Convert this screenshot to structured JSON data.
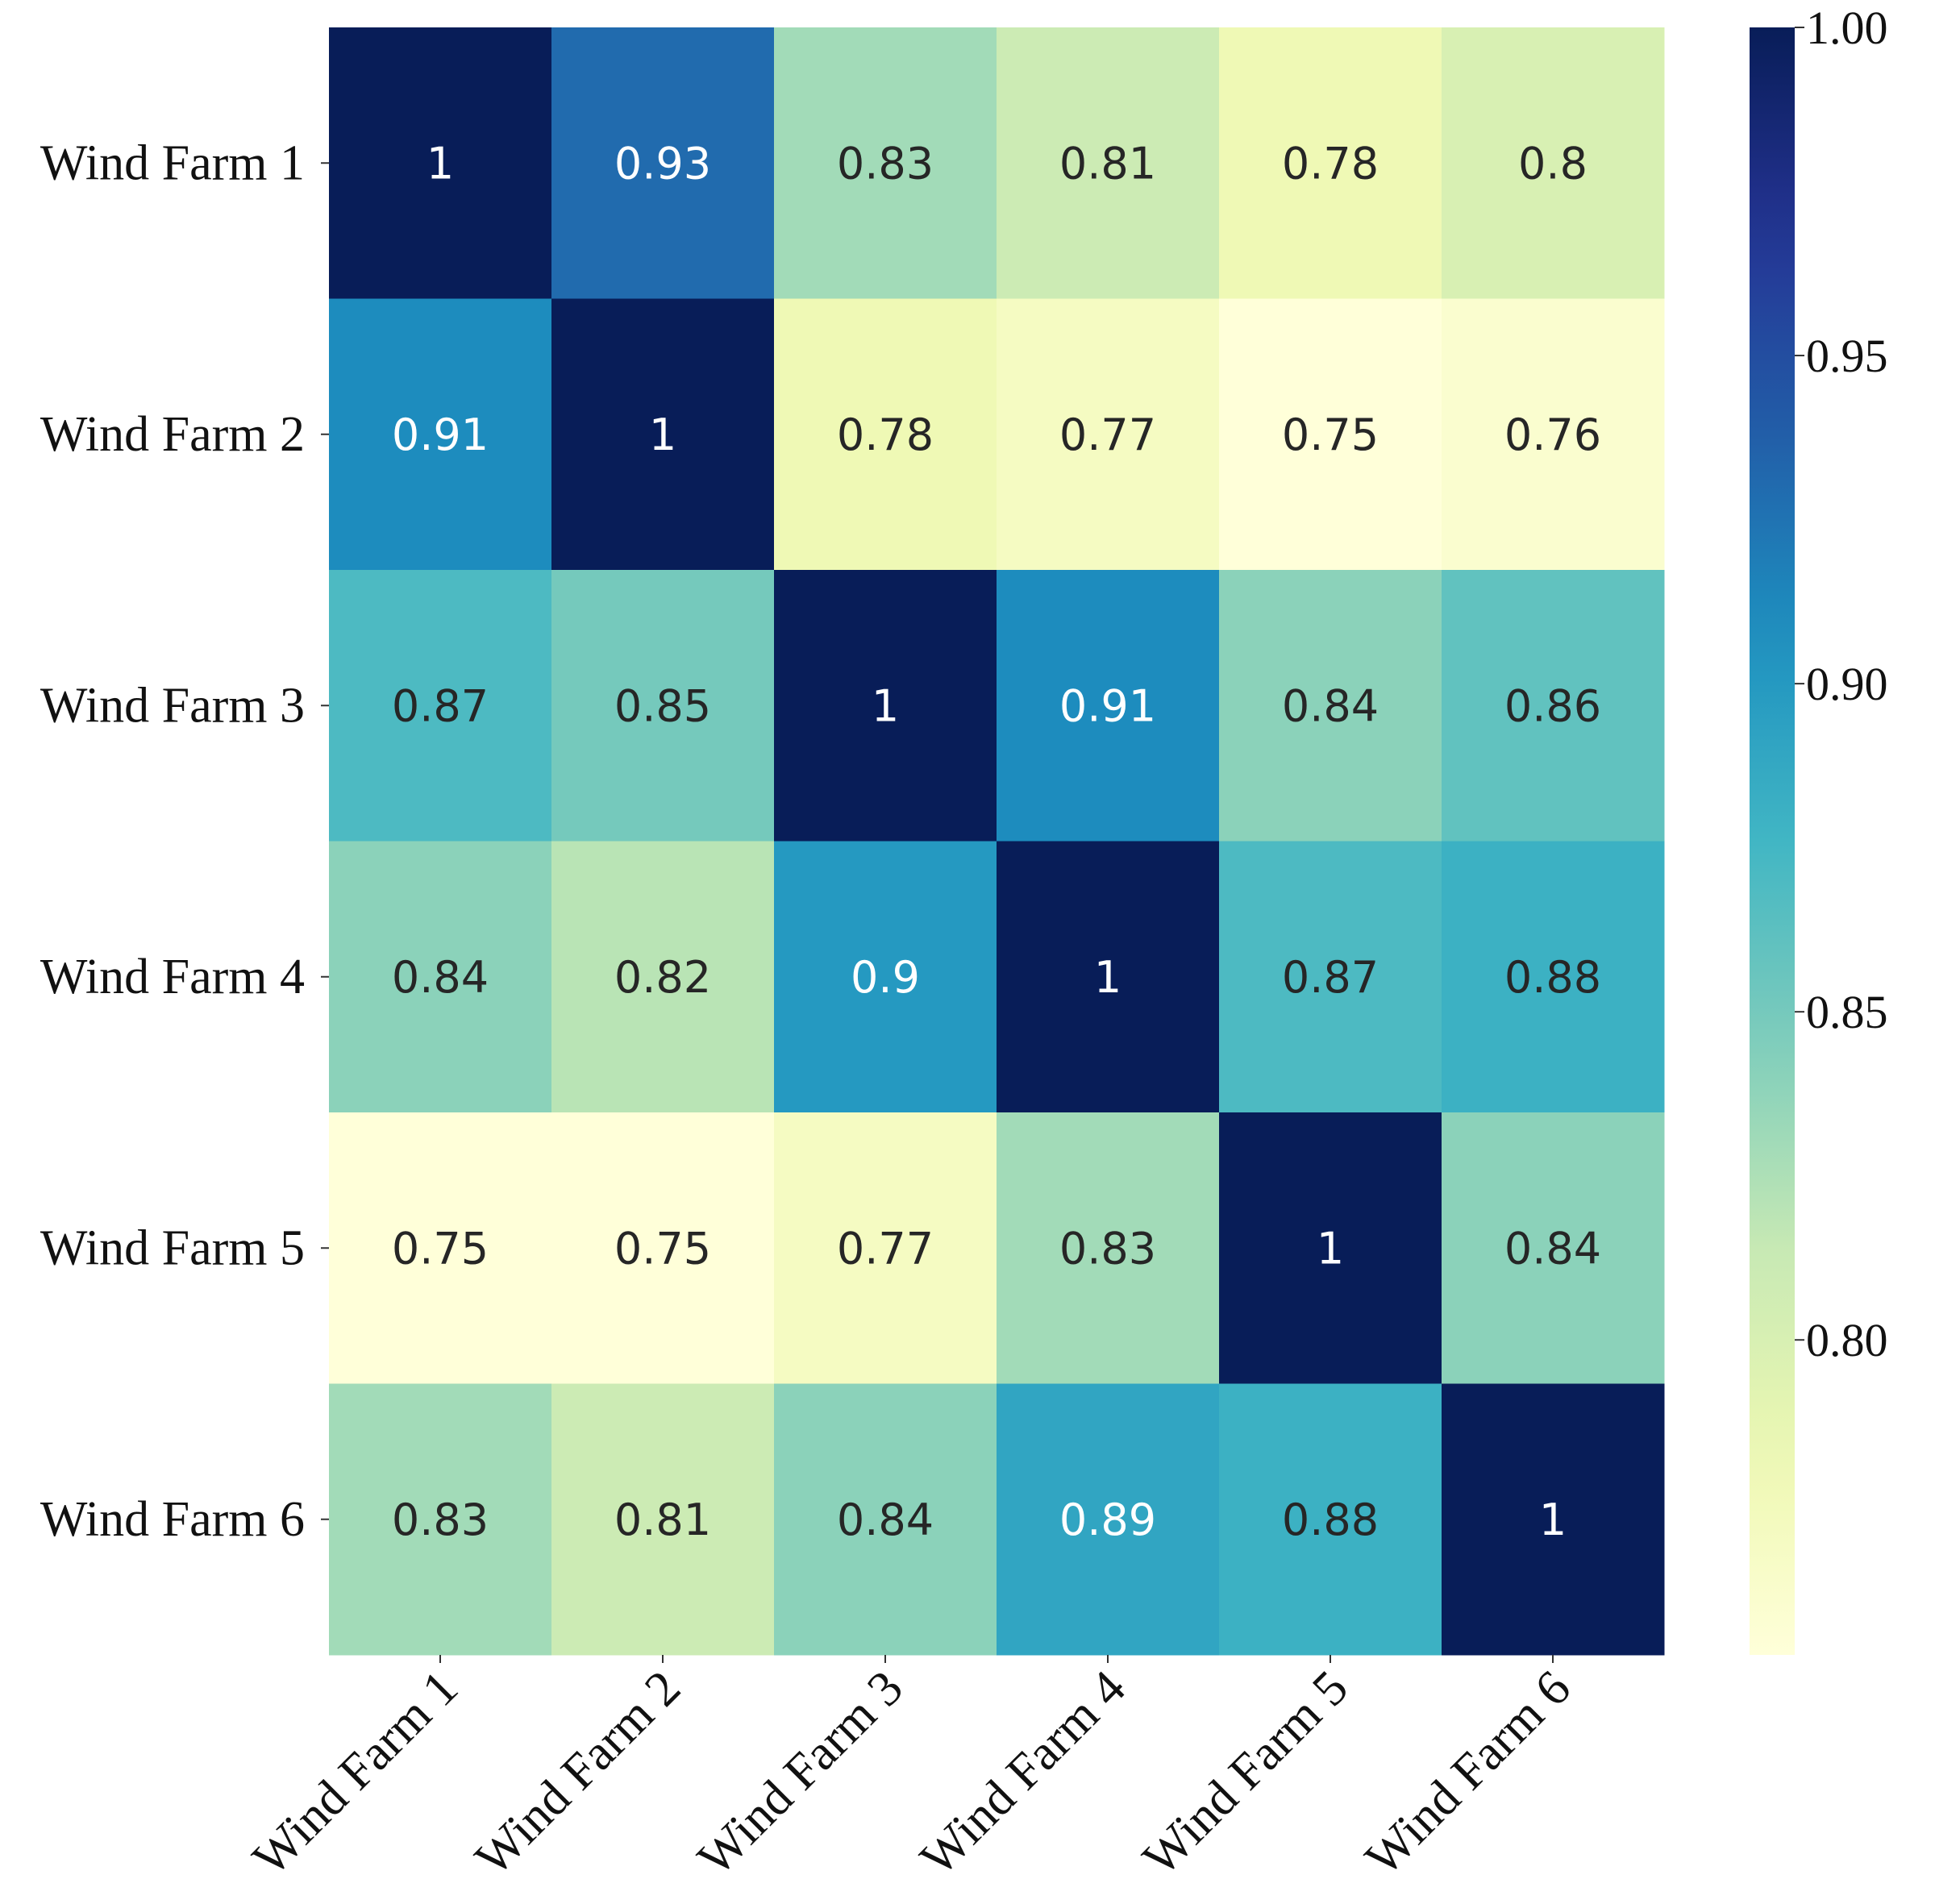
{
  "chart_data": {
    "type": "heatmap",
    "title": "",
    "row_labels": [
      "Wind Farm 1",
      "Wind Farm 2",
      "Wind Farm 3",
      "Wind Farm 4",
      "Wind Farm 5",
      "Wind Farm 6"
    ],
    "col_labels": [
      "Wind Farm 1",
      "Wind Farm 2",
      "Wind Farm 3",
      "Wind Farm 4",
      "Wind Farm 5",
      "Wind Farm 6"
    ],
    "values": [
      [
        1,
        0.93,
        0.83,
        0.81,
        0.78,
        0.8
      ],
      [
        0.91,
        1,
        0.78,
        0.77,
        0.75,
        0.76
      ],
      [
        0.87,
        0.85,
        1,
        0.91,
        0.84,
        0.86
      ],
      [
        0.84,
        0.82,
        0.9,
        1,
        0.87,
        0.88
      ],
      [
        0.75,
        0.75,
        0.77,
        0.83,
        1,
        0.84
      ],
      [
        0.83,
        0.81,
        0.84,
        0.89,
        0.88,
        1
      ]
    ],
    "cell_text": [
      [
        "1",
        "0.93",
        "0.83",
        "0.81",
        "0.78",
        "0.8"
      ],
      [
        "0.91",
        "1",
        "0.78",
        "0.77",
        "0.75",
        "0.76"
      ],
      [
        "0.87",
        "0.85",
        "1",
        "0.91",
        "0.84",
        "0.86"
      ],
      [
        "0.84",
        "0.82",
        "0.9",
        "1",
        "0.87",
        "0.88"
      ],
      [
        "0.75",
        "0.75",
        "0.77",
        "0.83",
        "1",
        "0.84"
      ],
      [
        "0.83",
        "0.81",
        "0.84",
        "0.89",
        "0.88",
        "1"
      ]
    ],
    "colormap": "YlGnBu",
    "colorbar": {
      "range": [
        0.752,
        1.0
      ],
      "ticks": [
        0.8,
        0.85,
        0.9,
        0.95,
        1.0
      ],
      "tick_labels": [
        "0.80",
        "0.85",
        "0.90",
        "0.95",
        "1.00"
      ]
    },
    "legend": "colorbar right"
  }
}
